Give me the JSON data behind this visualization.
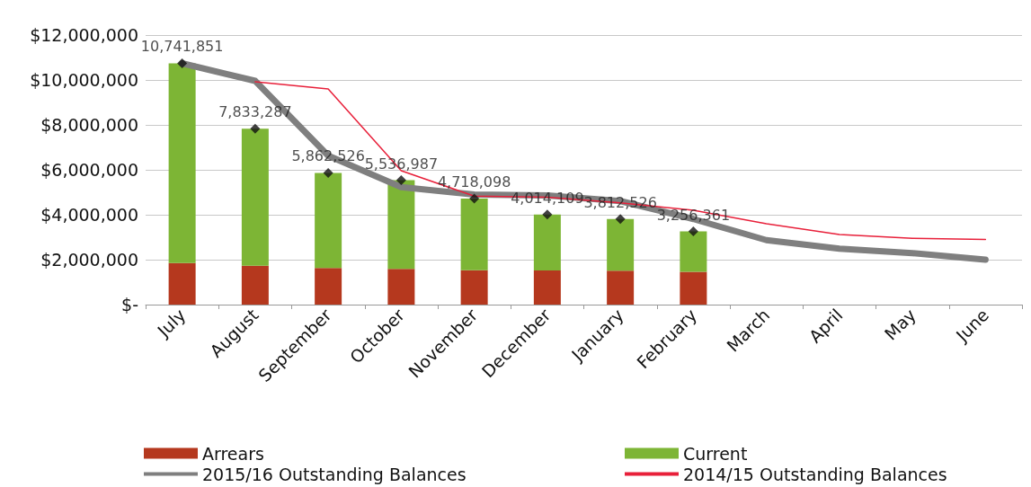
{
  "chart_data": {
    "type": "bar",
    "stacked": true,
    "categories": [
      "July",
      "August",
      "September",
      "October",
      "November",
      "December",
      "January",
      "February",
      "March",
      "April",
      "May",
      "June"
    ],
    "series": [
      {
        "name": "Arrears",
        "color": "#b5381e",
        "values": [
          1850000,
          1730000,
          1630000,
          1590000,
          1530000,
          1520000,
          1510000,
          1460000,
          null,
          null,
          null,
          null
        ]
      },
      {
        "name": "Current",
        "color": "#7db535",
        "values": [
          8890000,
          6100000,
          4230000,
          3950000,
          3190000,
          2490000,
          2300000,
          1800000,
          null,
          null,
          null,
          null
        ]
      },
      {
        "name": "2015/16 Outstanding Balances",
        "type": "line",
        "color": "#7f7f7f",
        "values": [
          10740000,
          9960000,
          6630000,
          5230000,
          4900000,
          4860000,
          4610000,
          3810000,
          2870000,
          2490000,
          2290000,
          2000000
        ]
      },
      {
        "name": "2014/15 Outstanding Balances",
        "type": "line",
        "color": "#e8203a",
        "values": [
          null,
          9920000,
          9600000,
          5960000,
          4830000,
          4780000,
          4530000,
          4200000,
          3600000,
          3120000,
          2950000,
          2900000
        ]
      },
      {
        "type": "scatter",
        "marker": "diamond",
        "color": "#111111",
        "values": [
          10741851,
          7833287,
          5862526,
          5536987,
          4718098,
          4014109,
          3812526,
          3256361,
          null,
          null,
          null,
          null
        ],
        "value_labels": [
          "10,741,851",
          "7,833,287",
          "5,862,526",
          "5,536,987",
          "4,718,098",
          "4,014,109",
          "3,812,526",
          "3,256,361",
          null,
          null,
          null,
          null
        ]
      }
    ],
    "ylim": [
      0,
      12000000
    ],
    "yticks": [
      {
        "value": 0,
        "label": "$-"
      },
      {
        "value": 2000000,
        "label": "$2,000,000"
      },
      {
        "value": 4000000,
        "label": "$4,000,000"
      },
      {
        "value": 6000000,
        "label": "$6,000,000"
      },
      {
        "value": 8000000,
        "label": "$8,000,000"
      },
      {
        "value": 10000000,
        "label": "$10,000,000"
      },
      {
        "value": 12000000,
        "label": "$12,000,000"
      }
    ],
    "grid": "y",
    "legend": "bottom",
    "marker": "none"
  }
}
